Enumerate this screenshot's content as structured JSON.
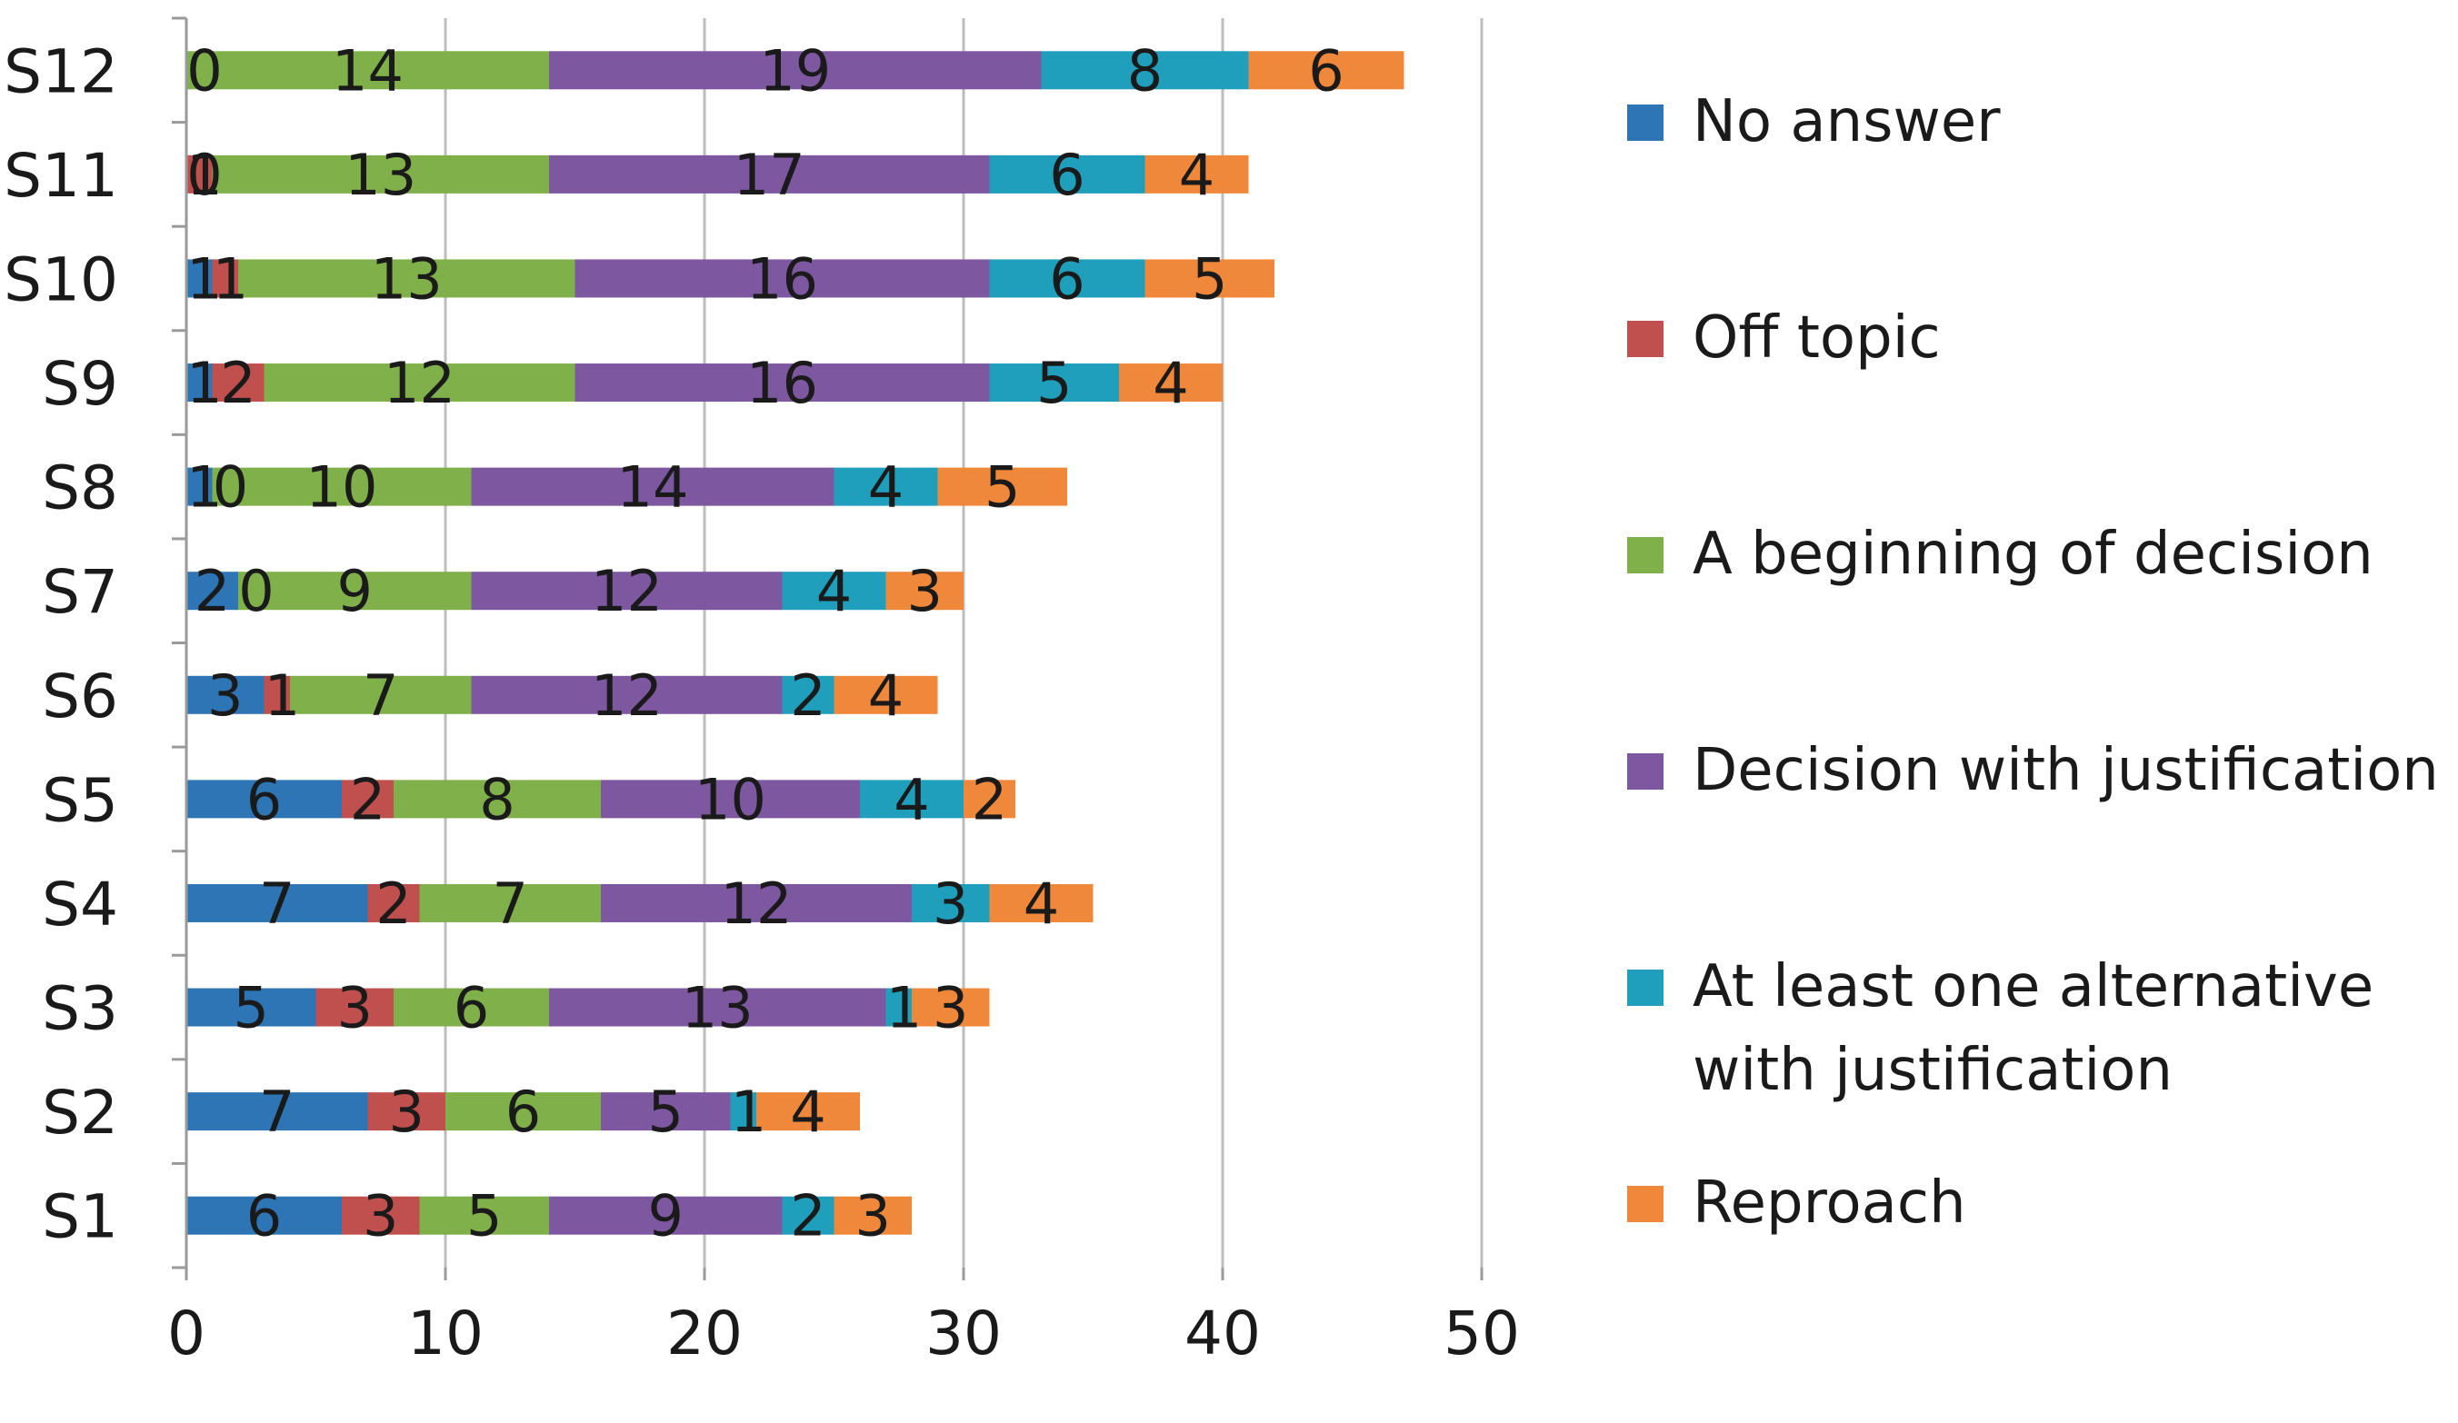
{
  "chart_data": {
    "type": "bar",
    "orientation": "horizontal",
    "stacked": true,
    "title": "",
    "xlabel": "",
    "ylabel": "",
    "xlim": [
      0,
      50
    ],
    "x_ticks": [
      0,
      10,
      20,
      30,
      40,
      50
    ],
    "grid": true,
    "legend_position": "right",
    "categories": [
      "S1",
      "S2",
      "S3",
      "S4",
      "S5",
      "S6",
      "S7",
      "S8",
      "S9",
      "S10",
      "S11",
      "S12"
    ],
    "series": [
      {
        "name": "No answer",
        "color": "#2e75b6",
        "values": [
          6,
          7,
          5,
          7,
          6,
          3,
          2,
          1,
          1,
          1,
          0,
          0
        ]
      },
      {
        "name": "Off topic",
        "color": "#c0504d",
        "values": [
          3,
          3,
          3,
          2,
          2,
          1,
          0,
          0,
          2,
          1,
          1,
          0
        ]
      },
      {
        "name": "A beginning of decision",
        "color": "#7fb04a",
        "values": [
          5,
          6,
          6,
          7,
          8,
          7,
          9,
          10,
          12,
          13,
          13,
          14
        ]
      },
      {
        "name": "Decision with justification",
        "color": "#7d58a1",
        "values": [
          9,
          5,
          13,
          12,
          10,
          12,
          12,
          14,
          16,
          16,
          17,
          19
        ]
      },
      {
        "name": "At least one alternative with justification",
        "color": "#1f9fbc",
        "values": [
          2,
          1,
          1,
          3,
          4,
          2,
          4,
          4,
          5,
          6,
          6,
          8
        ]
      },
      {
        "name": "Reproach",
        "color": "#f0883b",
        "values": [
          3,
          4,
          3,
          4,
          2,
          4,
          3,
          5,
          4,
          5,
          4,
          6
        ]
      }
    ]
  },
  "legend_lines": [
    [
      "No answer"
    ],
    [
      "Off topic"
    ],
    [
      "A beginning of decision"
    ],
    [
      "Decision with justification"
    ],
    [
      "At least one alternative",
      "with justification"
    ],
    [
      "Reproach"
    ]
  ]
}
